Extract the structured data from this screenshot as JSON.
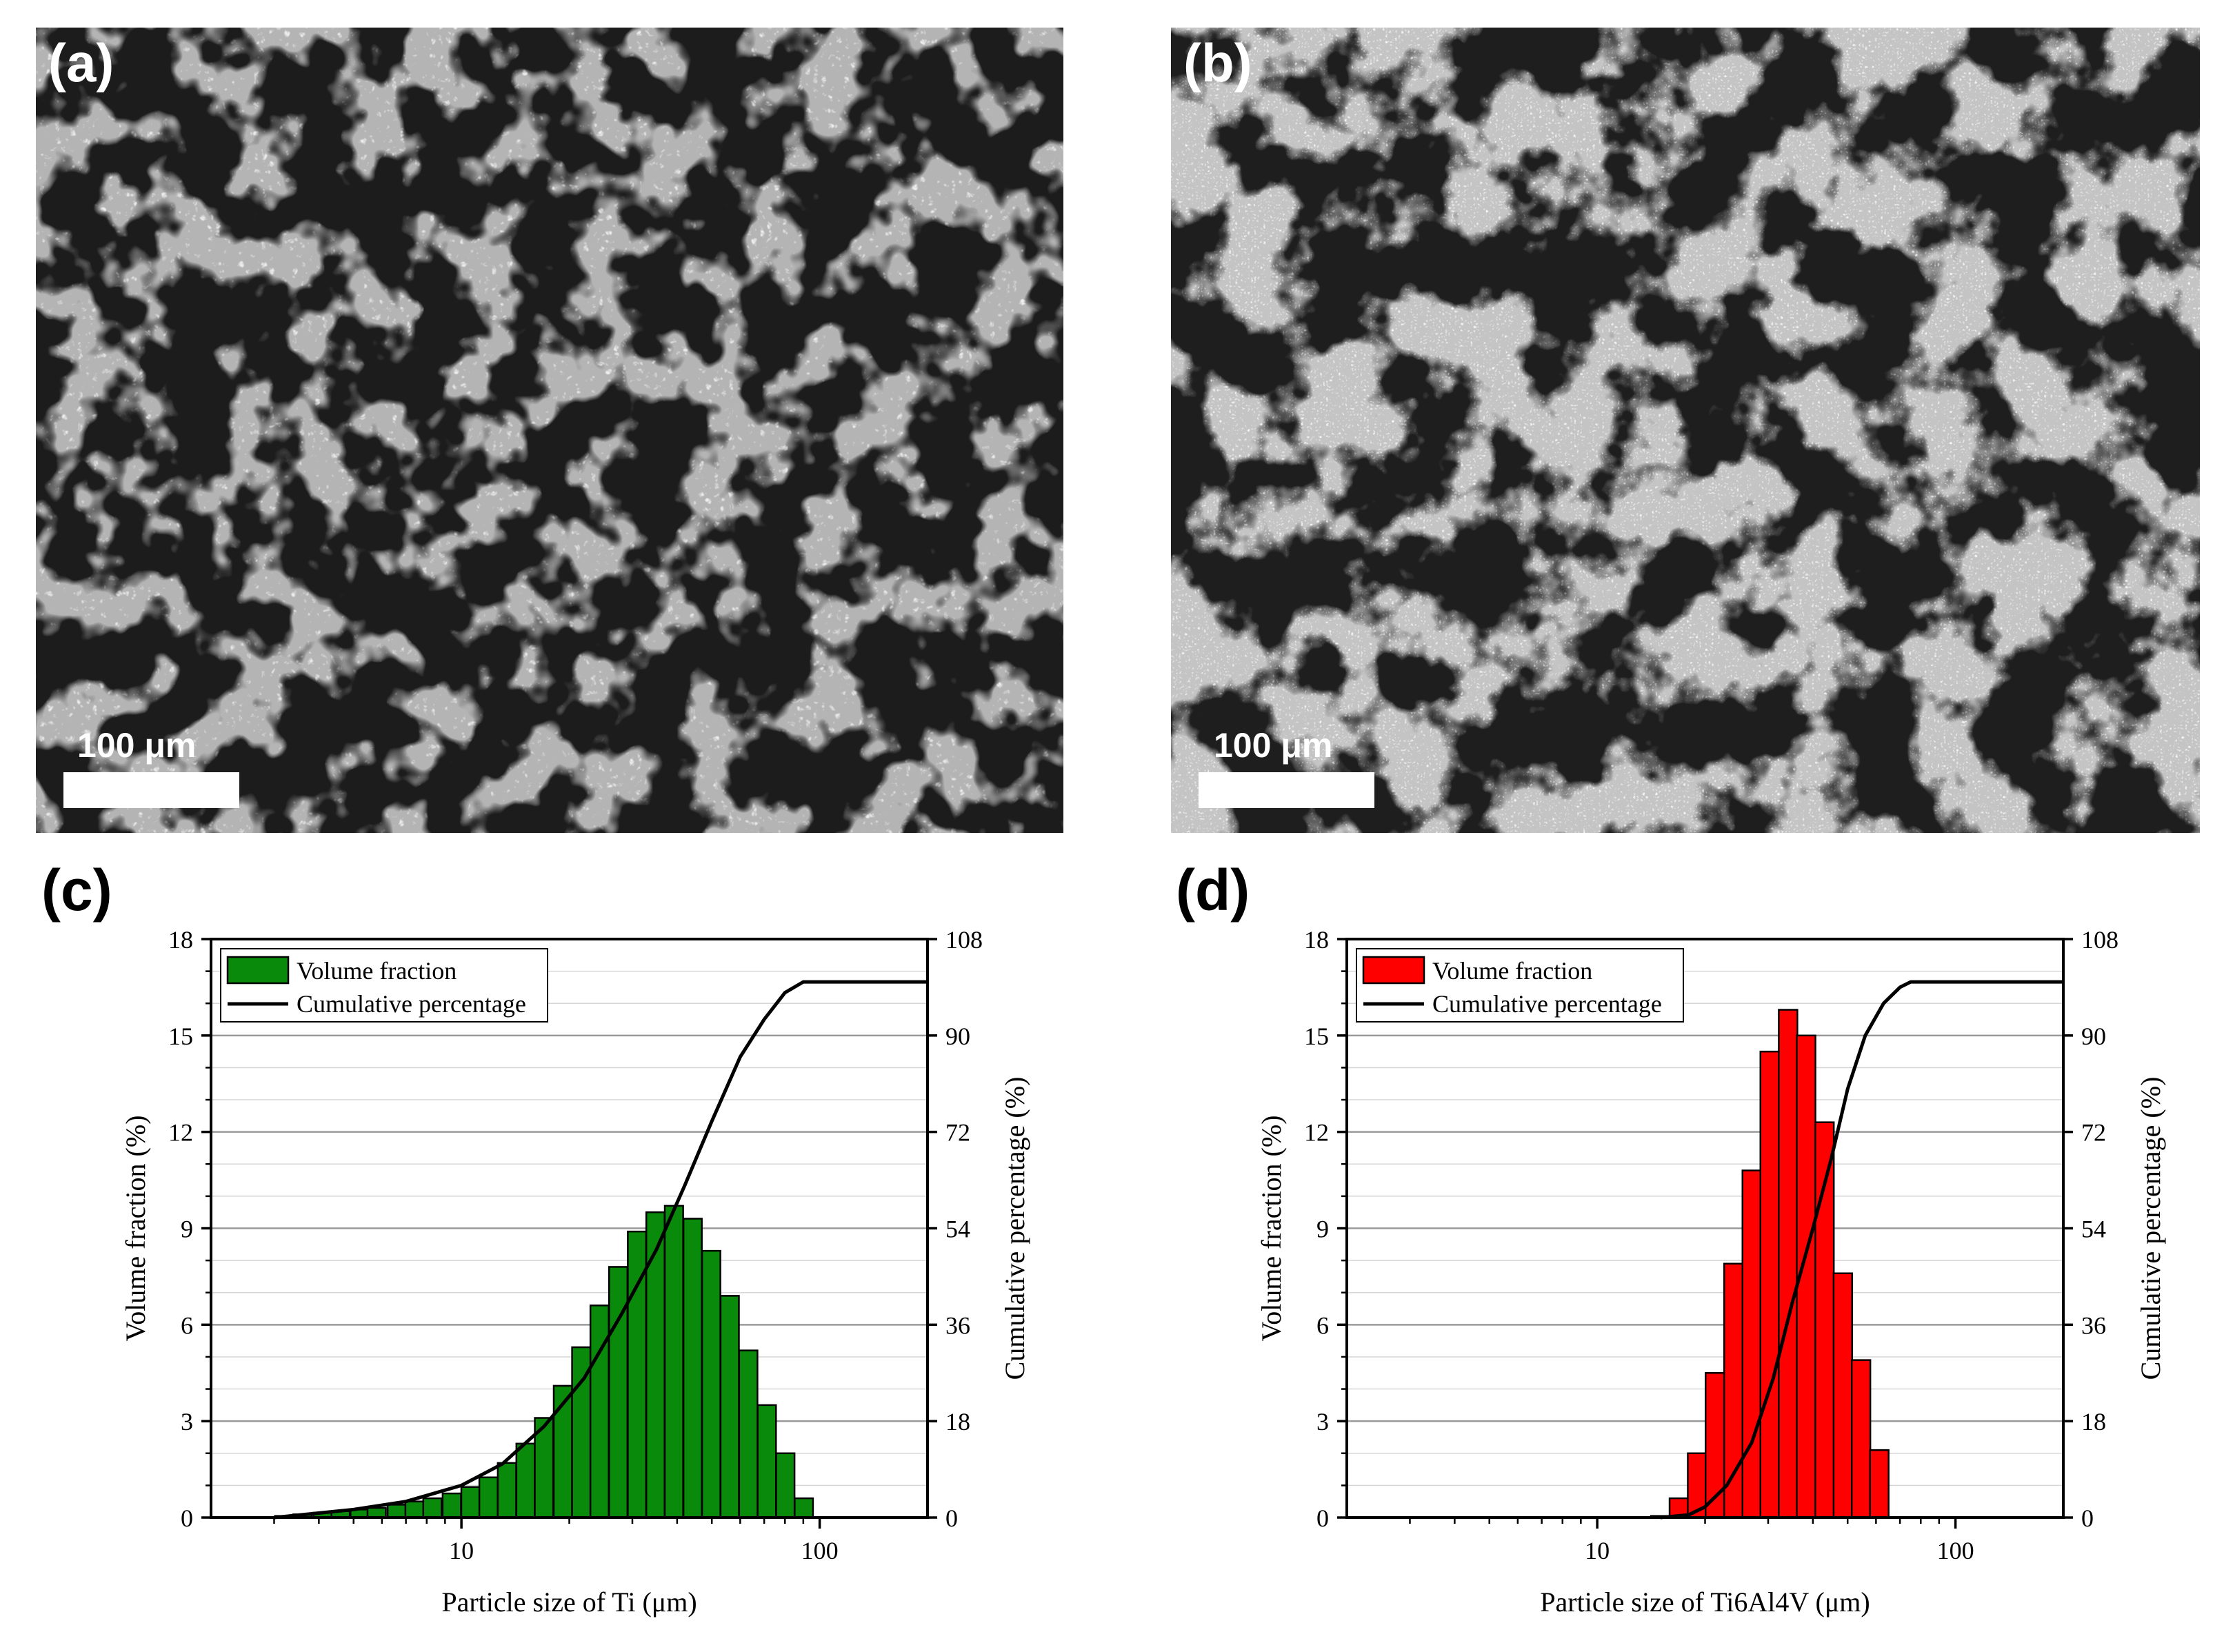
{
  "panels": {
    "a": {
      "label": "(a)",
      "scale_bar": "100 μm"
    },
    "b": {
      "label": "(b)",
      "scale_bar": "100 μm"
    },
    "c": {
      "label": "(c)"
    },
    "d": {
      "label": "(d)"
    }
  },
  "chart_data": [
    {
      "type": "bar",
      "panel": "(c)",
      "xlabel": "Particle size of Ti (μm)",
      "ylabel": "Volume fraction (%)",
      "y2label": "Cumulative percentage (%)",
      "xscale": "log",
      "xlim": [
        2,
        200
      ],
      "xticks": [
        10,
        100
      ],
      "ylim": [
        0,
        18
      ],
      "yticks": [
        0,
        3,
        6,
        9,
        12,
        15,
        18
      ],
      "y2lim": [
        0,
        108
      ],
      "y2ticks": [
        0,
        18,
        36,
        54,
        72,
        90,
        108
      ],
      "grid": true,
      "legend_position": "top-left",
      "bar_color": "#0a8a0a",
      "series": [
        {
          "name": "Volume fraction",
          "type": "bar",
          "x": [
            3.2,
            3.6,
            4.1,
            4.6,
            5.2,
            5.8,
            6.6,
            7.4,
            8.3,
            9.4,
            10.6,
            11.9,
            13.4,
            15.1,
            17.0,
            19.2,
            21.6,
            24.3,
            27.4,
            30.9,
            34.8,
            39.2,
            44.2,
            49.8,
            56.1,
            63.2,
            71.2,
            80.2,
            90.3,
            101.8
          ],
          "values": [
            0.05,
            0.1,
            0.15,
            0.2,
            0.25,
            0.3,
            0.4,
            0.5,
            0.6,
            0.75,
            0.95,
            1.25,
            1.7,
            2.3,
            3.1,
            4.1,
            5.3,
            6.6,
            7.8,
            8.9,
            9.5,
            9.7,
            9.3,
            8.3,
            6.9,
            5.2,
            3.5,
            2.0,
            0.6,
            0.0
          ]
        },
        {
          "name": "Cumulative percentage",
          "type": "line",
          "x": [
            3,
            5,
            7,
            10,
            13,
            17,
            22,
            28,
            35,
            42,
            50,
            60,
            70,
            80,
            90,
            100,
            200
          ],
          "values": [
            0,
            1.5,
            3,
            6,
            10,
            17,
            26,
            38,
            50,
            62,
            74,
            86,
            93,
            98,
            100,
            100,
            100
          ]
        }
      ]
    },
    {
      "type": "bar",
      "panel": "(d)",
      "xlabel": "Particle size of Ti6Al4V (μm)",
      "ylabel": "Volume fraction (%)",
      "y2label": "Cumulative percentage (%)",
      "xscale": "log",
      "xlim": [
        2,
        200
      ],
      "xticks": [
        10,
        100
      ],
      "ylim": [
        0,
        18
      ],
      "yticks": [
        0,
        3,
        6,
        9,
        12,
        15,
        18
      ],
      "y2lim": [
        0,
        108
      ],
      "y2ticks": [
        0,
        18,
        36,
        54,
        72,
        90,
        108
      ],
      "grid": true,
      "legend_position": "top-left",
      "bar_color": "#ff0000",
      "series": [
        {
          "name": "Volume fraction",
          "type": "bar",
          "x": [
            15.0,
            16.9,
            19.0,
            21.3,
            24.0,
            27.0,
            30.3,
            34.1,
            38.3,
            43.1,
            48.5,
            54.5,
            61.3,
            69.0
          ],
          "values": [
            0.05,
            0.6,
            2.0,
            4.5,
            7.9,
            10.8,
            14.5,
            15.8,
            15.0,
            12.3,
            7.6,
            4.9,
            2.1,
            0.0
          ]
        },
        {
          "name": "Cumulative percentage",
          "type": "line",
          "x": [
            15,
            18,
            20,
            23,
            27,
            31,
            35,
            40,
            45,
            50,
            56,
            63,
            70,
            75,
            200
          ],
          "values": [
            0,
            0.5,
            2,
            6,
            14,
            26,
            40,
            54,
            67,
            80,
            90,
            96,
            99,
            100,
            100
          ]
        }
      ]
    }
  ]
}
